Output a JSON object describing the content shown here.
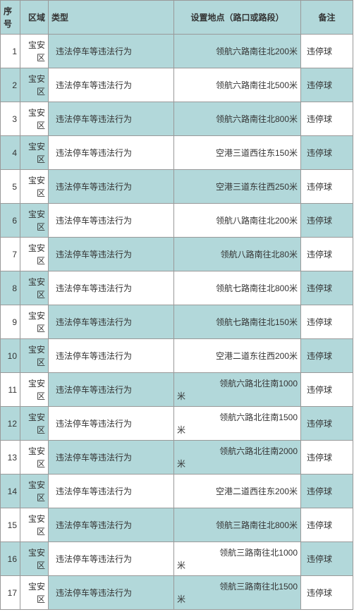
{
  "headers": {
    "seq": "序号",
    "region": "区域",
    "type": "类型",
    "location": "设置地点（路口或路段）",
    "remark": "备注"
  },
  "rows": [
    {
      "seq": "1",
      "region": "宝安区",
      "type": "违法停车等违法行为",
      "location": "领航六路南往北200米",
      "remark": "违停球",
      "wrap": false
    },
    {
      "seq": "2",
      "region": "宝安区",
      "type": "违法停车等违法行为",
      "location": "领航六路南往北500米",
      "remark": "违停球",
      "wrap": false
    },
    {
      "seq": "3",
      "region": "宝安区",
      "type": "违法停车等违法行为",
      "location": "领航六路南往北800米",
      "remark": "违停球",
      "wrap": false
    },
    {
      "seq": "4",
      "region": "宝安区",
      "type": "违法停车等违法行为",
      "location": "空港三道西往东150米",
      "remark": "违停球",
      "wrap": false
    },
    {
      "seq": "5",
      "region": "宝安区",
      "type": "违法停车等违法行为",
      "location": "空港三道东往西250米",
      "remark": "违停球",
      "wrap": false
    },
    {
      "seq": "6",
      "region": "宝安区",
      "type": "违法停车等违法行为",
      "location": "领航八路南往北200米",
      "remark": "违停球",
      "wrap": false
    },
    {
      "seq": "7",
      "region": "宝安区",
      "type": "违法停车等违法行为",
      "location": "领航八路南往北80米",
      "remark": "违停球",
      "wrap": false
    },
    {
      "seq": "8",
      "region": "宝安区",
      "type": "违法停车等违法行为",
      "location": "领航七路南往北800米",
      "remark": "违停球",
      "wrap": false
    },
    {
      "seq": "9",
      "region": "宝安区",
      "type": "违法停车等违法行为",
      "location": "领航七路南往北150米",
      "remark": "违停球",
      "wrap": false
    },
    {
      "seq": "10",
      "region": "宝安区",
      "type": "违法停车等违法行为",
      "location": "空港二道东往西200米",
      "remark": "违停球",
      "wrap": false
    },
    {
      "seq": "11",
      "region": "宝安区",
      "type": "违法停车等违法行为",
      "location": "领航六路北往南1000米",
      "line1": "领航六路北往南1000",
      "line2": "米",
      "remark": "违停球",
      "wrap": true
    },
    {
      "seq": "12",
      "region": "宝安区",
      "type": "违法停车等违法行为",
      "location": "领航六路北往南1500米",
      "line1": "领航六路北往南1500",
      "line2": "米",
      "remark": "违停球",
      "wrap": true
    },
    {
      "seq": "13",
      "region": "宝安区",
      "type": "违法停车等违法行为",
      "location": "领航六路北往南2000米",
      "line1": "领航六路北往南2000",
      "line2": "米",
      "remark": "违停球",
      "wrap": true
    },
    {
      "seq": "14",
      "region": "宝安区",
      "type": "违法停车等违法行为",
      "location": "空港二道西往东200米",
      "remark": "违停球",
      "wrap": false
    },
    {
      "seq": "15",
      "region": "宝安区",
      "type": "违法停车等违法行为",
      "location": "领航三路南往北800米",
      "remark": "违停球",
      "wrap": false
    },
    {
      "seq": "16",
      "region": "宝安区",
      "type": "违法停车等违法行为",
      "location": "领航三路南往北1000米",
      "line1": "领航三路南往北1000",
      "line2": "米",
      "remark": "违停球",
      "wrap": true
    },
    {
      "seq": "17",
      "region": "宝安区",
      "type": "违法停车等违法行为",
      "location": "领航三路南往北1500米",
      "line1": "领航三路南往北1500",
      "line2": "米",
      "remark": "违停球",
      "wrap": true
    }
  ]
}
